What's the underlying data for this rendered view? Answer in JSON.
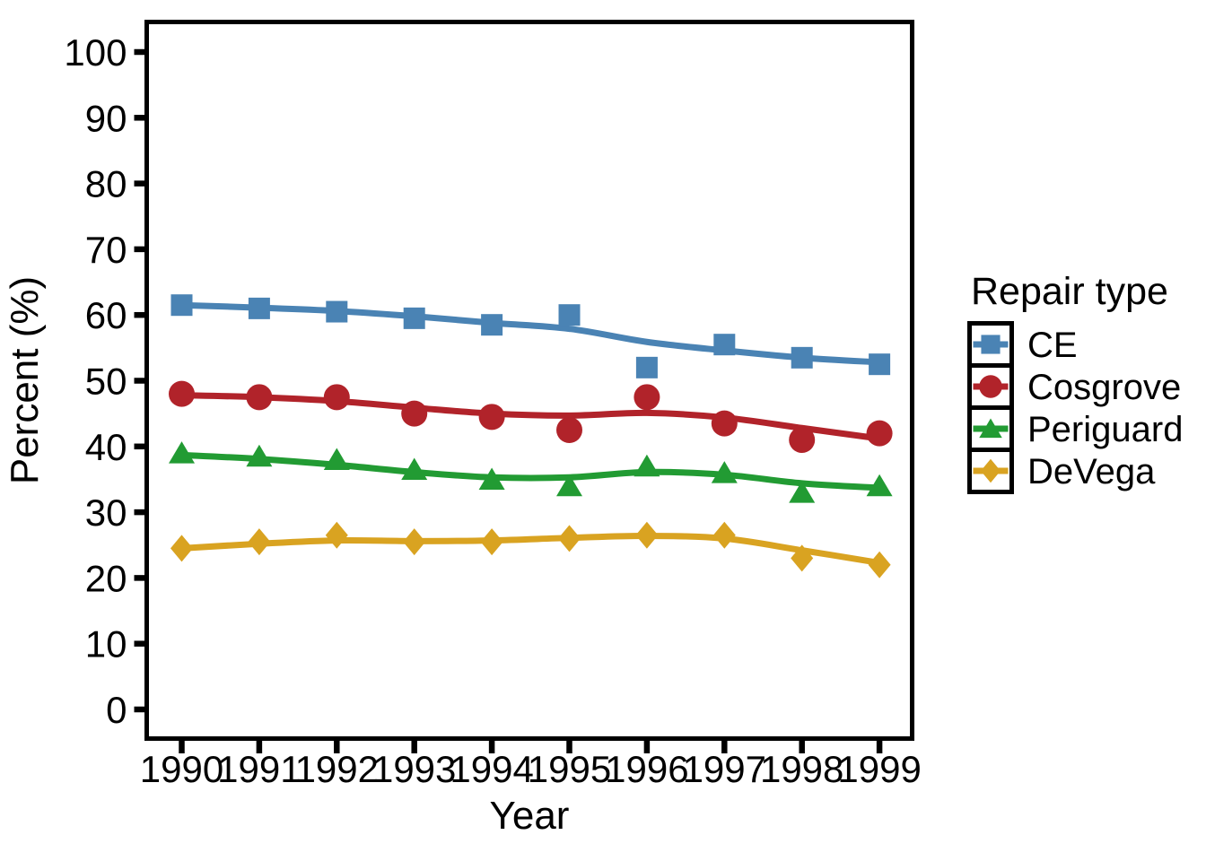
{
  "chart_data": {
    "type": "scatter",
    "subtype": "points-with-smoothed-trend-lines",
    "title": "",
    "xlabel": "Year",
    "ylabel": "Percent (%)",
    "legend_title": "Repair type",
    "legend_position": "right",
    "grid": false,
    "panel_border": true,
    "axis_color": "#000000",
    "x": [
      1990,
      1991,
      1992,
      1993,
      1994,
      1995,
      1996,
      1997,
      1998,
      1999
    ],
    "xlim": [
      1990,
      1999
    ],
    "ylim": [
      0,
      100
    ],
    "yticks": [
      0,
      10,
      20,
      30,
      40,
      50,
      60,
      70,
      80,
      90,
      100
    ],
    "series": [
      {
        "name": "CE",
        "marker": "square",
        "color": "#4a83b4",
        "points": [
          61.5,
          61.0,
          60.5,
          59.5,
          58.5,
          60.0,
          52.0,
          55.5,
          53.5,
          52.5
        ],
        "smooth": [
          61.5,
          61.1,
          60.6,
          59.8,
          58.8,
          57.9,
          55.9,
          54.6,
          53.5,
          52.8
        ]
      },
      {
        "name": "Cosgrove",
        "marker": "circle",
        "color": "#b1232a",
        "points": [
          48.0,
          47.5,
          47.5,
          45.0,
          44.5,
          42.5,
          47.5,
          43.5,
          41.0,
          42.0
        ],
        "smooth": [
          47.8,
          47.5,
          46.9,
          45.9,
          45.0,
          44.7,
          45.1,
          44.4,
          42.8,
          41.2
        ]
      },
      {
        "name": "Periguard",
        "marker": "triangle",
        "color": "#229b33",
        "points": [
          39.0,
          38.5,
          38.0,
          36.5,
          35.0,
          34.0,
          37.0,
          36.0,
          33.0,
          34.0
        ],
        "smooth": [
          38.7,
          38.1,
          37.2,
          36.1,
          35.3,
          35.3,
          36.1,
          35.7,
          34.4,
          33.7
        ]
      },
      {
        "name": "DeVega",
        "marker": "diamond",
        "color": "#d9a321",
        "points": [
          24.5,
          25.5,
          26.5,
          25.5,
          25.5,
          26.0,
          26.5,
          26.5,
          23.0,
          22.0
        ],
        "smooth": [
          24.5,
          25.2,
          25.7,
          25.6,
          25.7,
          26.1,
          26.4,
          26.0,
          24.2,
          22.3
        ]
      }
    ]
  }
}
